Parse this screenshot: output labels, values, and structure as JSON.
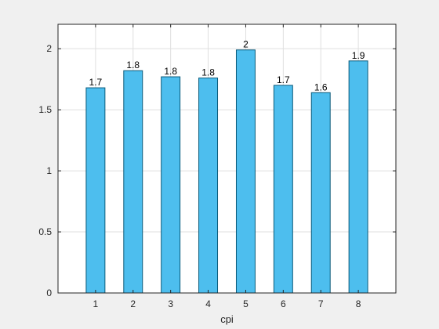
{
  "chart_data": {
    "type": "bar",
    "categories": [
      "1",
      "2",
      "3",
      "4",
      "5",
      "6",
      "7",
      "8"
    ],
    "values": [
      1.68,
      1.82,
      1.77,
      1.76,
      1.99,
      1.7,
      1.64,
      1.9
    ],
    "data_labels": [
      "1.7",
      "1.8",
      "1.8",
      "1.8",
      "2",
      "1.7",
      "1.6",
      "1.9"
    ],
    "xlabel": "cpi",
    "ylabel": "",
    "title": "",
    "xlim": [
      0,
      9
    ],
    "ylim": [
      0,
      2.2
    ],
    "yticks": [
      0,
      0.5,
      1,
      1.5,
      2
    ],
    "ytick_labels": [
      "0",
      "0.5",
      "1",
      "1.5",
      "2"
    ],
    "grid": true,
    "bar_color": "#4dbeee",
    "bar_edge_color": "#0a5a7a",
    "background_color": "#f0f0f0",
    "plot_background_color": "#ffffff"
  }
}
